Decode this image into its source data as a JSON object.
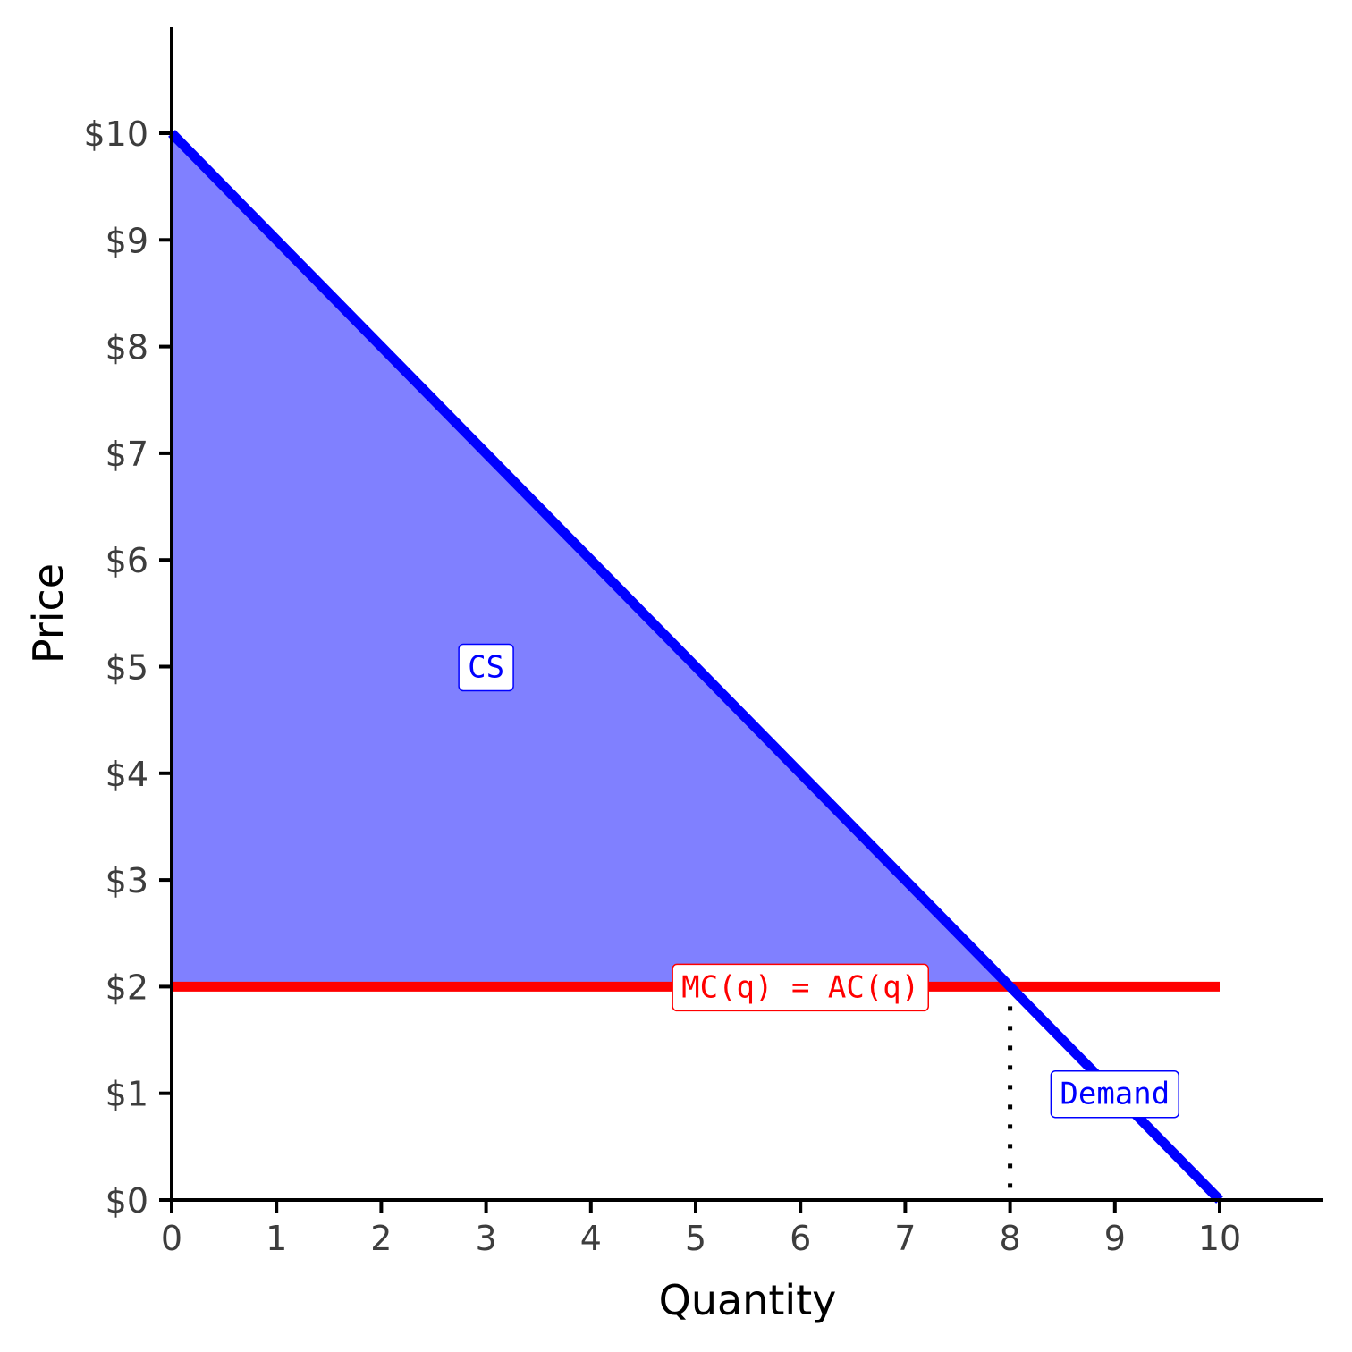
{
  "chart_data": {
    "type": "line",
    "xlabel": "Quantity",
    "ylabel": "Price",
    "xlim": [
      0,
      11
    ],
    "ylim": [
      0,
      11
    ],
    "x_ticks": [
      0,
      1,
      2,
      3,
      4,
      5,
      6,
      7,
      8,
      9,
      10
    ],
    "x_tick_labels": [
      "0",
      "1",
      "2",
      "3",
      "4",
      "5",
      "6",
      "7",
      "8",
      "9",
      "10"
    ],
    "y_ticks": [
      0,
      1,
      2,
      3,
      4,
      5,
      6,
      7,
      8,
      9,
      10
    ],
    "y_tick_labels": [
      "$0",
      "$1",
      "$2",
      "$3",
      "$4",
      "$5",
      "$6",
      "$7",
      "$8",
      "$9",
      "$10"
    ],
    "grid": false,
    "series": [
      {
        "name": "Demand",
        "color": "#0000ff",
        "points": [
          [
            0,
            10
          ],
          [
            10,
            0
          ]
        ]
      },
      {
        "name": "MC(q) = AC(q)",
        "color": "#ff0000",
        "points": [
          [
            0,
            2
          ],
          [
            10,
            2
          ]
        ]
      }
    ],
    "shaded_areas": [
      {
        "name": "CS",
        "color": "#8080ff",
        "points": [
          [
            0,
            10
          ],
          [
            8,
            2
          ],
          [
            0,
            2
          ]
        ]
      }
    ],
    "reference_lines": [
      {
        "style": "dotted",
        "color": "#000000",
        "points": [
          [
            8,
            2
          ],
          [
            8,
            0
          ]
        ]
      }
    ],
    "annotations": [
      {
        "text": "CS",
        "x": 3,
        "y": 5,
        "color": "#0000ff"
      },
      {
        "text": "MC(q) = AC(q)",
        "x": 6,
        "y": 2,
        "color": "#ff0000"
      },
      {
        "text": "Demand",
        "x": 9,
        "y": 1,
        "color": "#0000ff"
      }
    ]
  }
}
